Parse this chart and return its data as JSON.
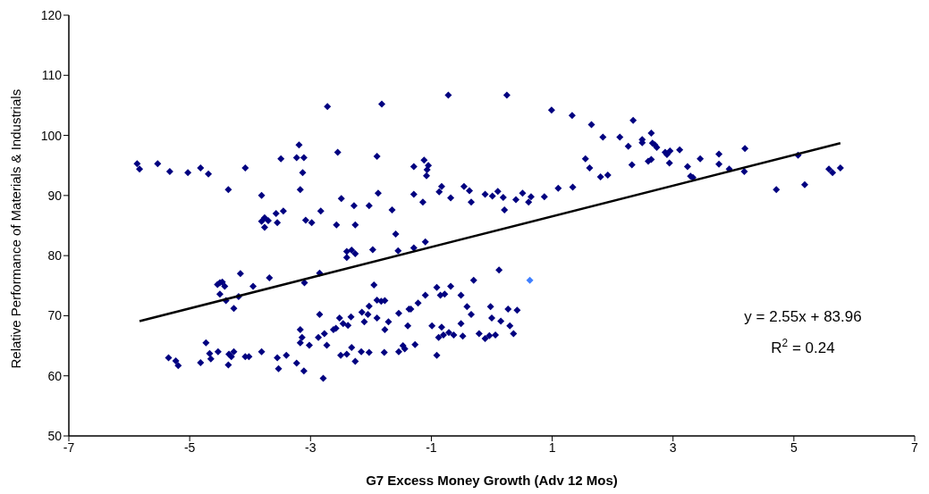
{
  "chart_data": {
    "type": "scatter",
    "xlabel": "G7 Excess Money Growth (Adv 12 Mos)",
    "ylabel": "Relative Performance of Materials & Industrials",
    "xlim": [
      -7,
      7
    ],
    "xticks": [
      -7,
      -5,
      -3,
      -1,
      1,
      3,
      5,
      7
    ],
    "ylim": [
      50,
      120
    ],
    "yticks": [
      50,
      60,
      70,
      80,
      90,
      100,
      110,
      120
    ],
    "grid": false,
    "marker": "diamond",
    "annotations": [
      "y = 2.55x + 83.96",
      "R$^{2}$ = 0.24"
    ],
    "series": [
      {
        "color": "#000080",
        "x": [
          -5.87,
          -5.83,
          -5.53,
          -5.33,
          -5.03,
          -4.82,
          -4.69,
          -4.36,
          -4.08,
          -3.81,
          -3.81,
          -3.76,
          -3.7,
          -3.76,
          -3.57,
          -3.55,
          -3.45,
          -3.49,
          -3.23,
          -3.19,
          -3.11,
          -3.13,
          -3.17,
          -3.08,
          -2.98,
          -2.83,
          -2.72,
          -2.55,
          -2.57,
          -2.49,
          -4.54,
          -4.5,
          -4.46,
          -4.42,
          -4.5,
          -4.4,
          -4.27,
          -4.19,
          -4.16,
          -3.95,
          -3.68,
          -3.1,
          -2.85,
          -2.85,
          -2.52,
          -2.46,
          -2.38,
          -2.33,
          -2.58,
          -3.17,
          -3.14,
          -3.17,
          -3.02,
          -2.87,
          -2.77,
          -2.73,
          -2.62,
          -2.5,
          -2.79,
          -3.11,
          -3.23,
          -3.4,
          -3.55,
          -3.53,
          -3.81,
          -4.02,
          -4.08,
          -4.27,
          -4.31,
          -4.35,
          -4.36,
          -4.53,
          -4.65,
          -4.67,
          -4.73,
          -4.82,
          -5.19,
          -5.23,
          -5.35,
          -1.82,
          -0.72,
          0.25,
          0.99,
          1.33,
          1.65,
          1.84,
          2.12,
          -1.9,
          -1.29,
          -1.12,
          -1.05,
          -1.07,
          -1.08,
          1.55,
          1.62,
          1.8,
          1.92,
          -1.88,
          -1.29,
          -1.14,
          -0.87,
          -0.83,
          -0.68,
          -0.46,
          -0.37,
          -0.34,
          -0.11,
          0.01,
          0.1,
          0.19,
          0.21,
          0.4,
          0.51,
          0.65,
          0.61,
          0.87,
          1.1,
          1.34,
          -2.28,
          -2.03,
          -1.65,
          -2.26,
          -1.59,
          -1.1,
          -1.29,
          -1.55,
          -1.97,
          -2.4,
          -2.32,
          -2.26,
          -2.4,
          0.12,
          -0.3,
          -1.95,
          -0.91,
          -0.68,
          -0.85,
          -0.78,
          -0.51,
          -1.1,
          -1.22,
          -1.34,
          -1.37,
          -1.54,
          -1.9,
          -1.83,
          -1.77,
          -2.03,
          -2.15,
          -2.05,
          -2.11,
          -1.9,
          -1.71,
          -1.77,
          -1.39,
          -0.41,
          -0.34,
          -0.02,
          0.27,
          0.42,
          0.0,
          0.15,
          0.3,
          0.36,
          -0.51,
          -0.99,
          -0.83,
          -0.88,
          -0.8,
          -0.71,
          -0.63,
          -0.48,
          -0.21,
          -0.11,
          -0.04,
          0.06,
          -0.91,
          -1.27,
          -1.44,
          -1.47,
          -1.54,
          -1.78,
          -2.03,
          -2.16,
          -2.26,
          -2.32,
          -2.4,
          2.34,
          2.26,
          2.49,
          2.49,
          2.64,
          2.66,
          2.7,
          2.73,
          2.32,
          2.59,
          2.64,
          2.87,
          2.9,
          2.95,
          2.94,
          3.11,
          3.24,
          3.29,
          3.33,
          3.45,
          3.76,
          3.76,
          3.93,
          4.19,
          4.18,
          4.71,
          5.07,
          5.18,
          5.58,
          5.64,
          5.77
        ],
        "values": [
          95.3,
          94.4,
          95.3,
          94.0,
          93.8,
          94.6,
          93.6,
          91.0,
          94.6,
          90.0,
          85.7,
          86.3,
          85.8,
          84.7,
          87.0,
          85.5,
          87.4,
          96.1,
          96.3,
          98.4,
          96.3,
          93.8,
          91.0,
          85.9,
          85.5,
          87.4,
          104.8,
          97.2,
          85.1,
          89.5,
          75.2,
          75.5,
          75.6,
          74.9,
          73.6,
          72.5,
          71.2,
          73.2,
          77.0,
          74.9,
          76.3,
          75.5,
          77.1,
          70.2,
          69.6,
          68.7,
          68.4,
          69.8,
          67.9,
          67.7,
          66.4,
          65.5,
          65.1,
          66.4,
          67.0,
          65.1,
          67.7,
          63.4,
          59.6,
          60.8,
          62.1,
          63.4,
          63.0,
          61.2,
          64.0,
          63.2,
          63.2,
          64.0,
          63.2,
          63.6,
          61.8,
          64.0,
          62.8,
          63.7,
          65.5,
          62.2,
          61.7,
          62.5,
          63.0,
          105.2,
          106.7,
          106.7,
          104.2,
          103.3,
          101.8,
          99.7,
          99.7,
          96.5,
          94.8,
          95.9,
          95.0,
          94.3,
          93.3,
          96.1,
          94.6,
          93.1,
          93.4,
          90.4,
          90.2,
          88.9,
          90.6,
          91.5,
          89.6,
          91.5,
          90.8,
          88.9,
          90.2,
          89.9,
          90.7,
          89.7,
          87.6,
          89.3,
          90.4,
          89.8,
          88.9,
          89.8,
          91.2,
          91.4,
          88.3,
          88.3,
          87.6,
          85.1,
          83.6,
          82.3,
          81.3,
          80.8,
          81.0,
          80.7,
          80.9,
          80.3,
          79.7,
          77.6,
          75.9,
          75.1,
          74.7,
          74.9,
          73.4,
          73.6,
          73.4,
          73.4,
          72.1,
          71.1,
          71.1,
          70.4,
          72.6,
          72.4,
          72.5,
          71.6,
          70.6,
          70.2,
          69.0,
          69.6,
          69.0,
          67.7,
          68.3,
          71.5,
          70.2,
          71.5,
          71.1,
          70.9,
          69.6,
          69.1,
          68.3,
          67.0,
          68.7,
          68.3,
          68.1,
          66.4,
          66.8,
          67.2,
          66.8,
          66.6,
          67.0,
          66.2,
          66.7,
          66.8,
          63.4,
          65.2,
          64.5,
          65.0,
          64.0,
          63.9,
          63.9,
          64.0,
          62.4,
          64.7,
          63.6,
          102.5,
          98.2,
          99.3,
          98.8,
          100.4,
          98.7,
          98.4,
          98.0,
          95.1,
          95.7,
          96.0,
          97.2,
          96.8,
          97.4,
          95.4,
          97.6,
          94.8,
          93.2,
          93.0,
          96.1,
          96.9,
          95.2,
          94.4,
          97.8,
          94.0,
          91.0,
          96.7,
          91.8,
          94.4,
          93.8,
          94.6
        ]
      },
      {
        "color": "#3f7fff",
        "x": [
          0.63
        ],
        "values": [
          75.9
        ]
      },
      {
        "type": "line",
        "color": "#000000",
        "marker": "none",
        "x": [
          -5.83,
          5.77
        ],
        "values": [
          69.1,
          98.7
        ]
      }
    ]
  }
}
